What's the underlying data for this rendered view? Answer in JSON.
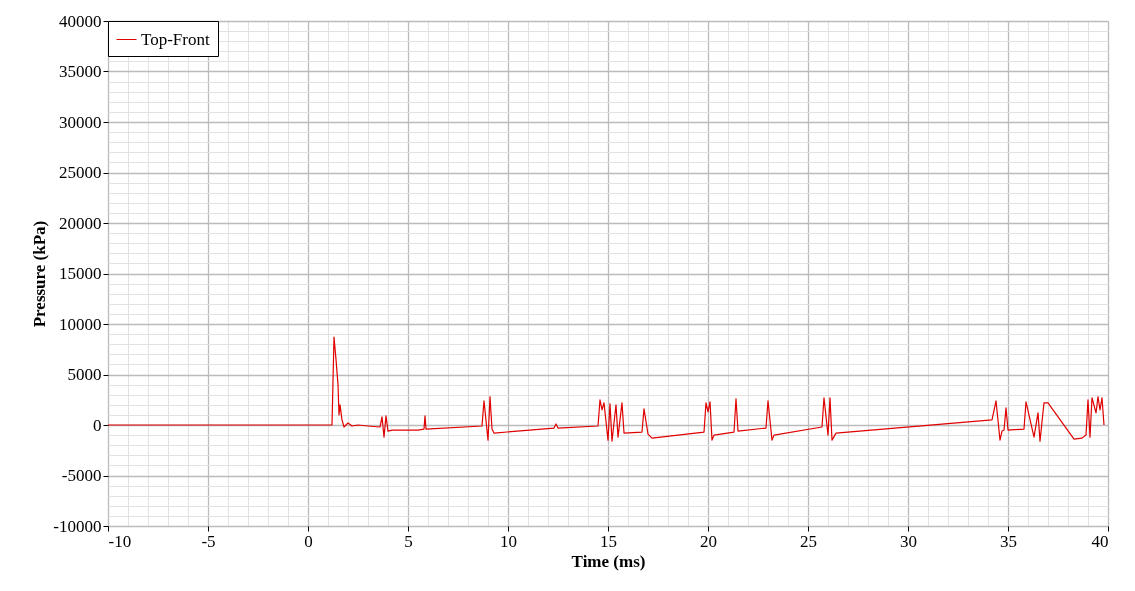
{
  "chart_data": {
    "type": "line",
    "xlabel": "Time (ms)",
    "ylabel": "Pressure (kPa)",
    "xlim": [
      -10,
      40
    ],
    "ylim": [
      -10000,
      40000
    ],
    "xticks": [
      -10,
      {
        "value": -9,
        "label": null
      },
      {
        "value": -8,
        "label": null
      },
      {
        "value": -7,
        "label": null
      },
      {
        "value": -6,
        "label": null
      },
      -5,
      {
        "value": -4,
        "label": null
      },
      {
        "value": -3,
        "label": null
      },
      {
        "value": -2,
        "label": null
      },
      {
        "value": -1,
        "label": null
      },
      0,
      {
        "value": 1,
        "label": null
      },
      {
        "value": 2,
        "label": null
      },
      {
        "value": 3,
        "label": null
      },
      {
        "value": 4,
        "label": null
      },
      5,
      {
        "value": 6,
        "label": null
      },
      {
        "value": 7,
        "label": null
      },
      {
        "value": 8,
        "label": null
      },
      {
        "value": 9,
        "label": null
      },
      10,
      {
        "value": 11,
        "label": null
      },
      {
        "value": 12,
        "label": null
      },
      {
        "value": 13,
        "label": null
      },
      {
        "value": 14,
        "label": null
      },
      15,
      {
        "value": 16,
        "label": null
      },
      {
        "value": 17,
        "label": null
      },
      {
        "value": 18,
        "label": null
      },
      {
        "value": 19,
        "label": null
      },
      20,
      {
        "value": 21,
        "label": null
      },
      {
        "value": 22,
        "label": null
      },
      {
        "value": 23,
        "label": null
      },
      {
        "value": 24,
        "label": null
      },
      25,
      {
        "value": 26,
        "label": null
      },
      {
        "value": 27,
        "label": null
      },
      {
        "value": 28,
        "label": null
      },
      {
        "value": 29,
        "label": null
      },
      30,
      {
        "value": 31,
        "label": null
      },
      {
        "value": 32,
        "label": null
      },
      {
        "value": 33,
        "label": null
      },
      {
        "value": 34,
        "label": null
      },
      35,
      {
        "value": 36,
        "label": null
      },
      {
        "value": 37,
        "label": null
      },
      {
        "value": 38,
        "label": null
      },
      {
        "value": 39,
        "label": null
      },
      40
    ],
    "yticks": [
      -10000,
      {
        "value": -9000,
        "label": null
      },
      {
        "value": -8000,
        "label": null
      },
      {
        "value": -7000,
        "label": null
      },
      {
        "value": -6000,
        "label": null
      },
      -5000,
      {
        "value": -4000,
        "label": null
      },
      {
        "value": -3000,
        "label": null
      },
      {
        "value": -2000,
        "label": null
      },
      {
        "value": -1000,
        "label": null
      },
      0,
      {
        "value": 1000,
        "label": null
      },
      {
        "value": 2000,
        "label": null
      },
      {
        "value": 3000,
        "label": null
      },
      {
        "value": 4000,
        "label": null
      },
      5000,
      {
        "value": 6000,
        "label": null
      },
      {
        "value": 7000,
        "label": null
      },
      {
        "value": 8000,
        "label": null
      },
      {
        "value": 9000,
        "label": null
      },
      10000,
      {
        "value": 11000,
        "label": null
      },
      {
        "value": 12000,
        "label": null
      },
      {
        "value": 13000,
        "label": null
      },
      {
        "value": 14000,
        "label": null
      },
      15000,
      {
        "value": 16000,
        "label": null
      },
      {
        "value": 17000,
        "label": null
      },
      {
        "value": 18000,
        "label": null
      },
      {
        "value": 19000,
        "label": null
      },
      20000,
      {
        "value": 21000,
        "label": null
      },
      {
        "value": 22000,
        "label": null
      },
      {
        "value": 23000,
        "label": null
      },
      {
        "value": 24000,
        "label": null
      },
      25000,
      {
        "value": 26000,
        "label": null
      },
      {
        "value": 27000,
        "label": null
      },
      {
        "value": 28000,
        "label": null
      },
      {
        "value": 29000,
        "label": null
      },
      30000,
      {
        "value": 31000,
        "label": null
      },
      {
        "value": 32000,
        "label": null
      },
      {
        "value": 33000,
        "label": null
      },
      {
        "value": 34000,
        "label": null
      },
      35000,
      {
        "value": 36000,
        "label": null
      },
      {
        "value": 37000,
        "label": null
      },
      {
        "value": 38000,
        "label": null
      },
      {
        "value": 39000,
        "label": null
      },
      40000
    ],
    "grid": true,
    "legend": "top left",
    "line_style": "solid",
    "marker": "none",
    "series": [
      {
        "name": "Top-Front",
        "color": "#e00000",
        "x": [
          -10,
          1.2,
          1.3,
          1.4,
          1.5,
          1.55,
          1.6,
          1.7,
          1.8,
          2.0,
          2.2,
          2.5,
          3.0,
          3.6,
          3.7,
          3.8,
          3.9,
          4.0,
          4.2,
          5.5,
          5.8,
          5.85,
          5.9,
          8.7,
          8.8,
          9.0,
          9.1,
          9.2,
          9.3,
          12.3,
          12.4,
          12.5,
          14.5,
          14.6,
          14.7,
          14.8,
          15.0,
          15.1,
          15.2,
          15.4,
          15.5,
          15.7,
          15.8,
          16.7,
          16.8,
          17.0,
          17.2,
          19.8,
          19.9,
          20.0,
          20.1,
          20.2,
          20.3,
          21.3,
          21.4,
          21.5,
          22.9,
          23.0,
          23.2,
          23.3,
          25.7,
          25.8,
          26.0,
          26.1,
          26.2,
          26.4,
          34.2,
          34.4,
          34.6,
          34.7,
          34.8,
          34.9,
          35.0,
          35.8,
          35.9,
          36.3,
          36.5,
          36.6,
          36.8,
          37.0,
          38.3,
          38.7,
          38.9,
          39.0,
          39.1,
          39.2,
          39.4,
          39.5,
          39.6,
          39.7,
          39.8
        ],
        "values": [
          0,
          0,
          8700,
          6500,
          4000,
          1000,
          2000,
          500,
          -200,
          200,
          -100,
          0,
          -100,
          -200,
          800,
          -1200,
          900,
          -600,
          -500,
          -500,
          -400,
          900,
          -400,
          -100,
          2400,
          -1500,
          2800,
          -400,
          -800,
          -300,
          100,
          -300,
          -100,
          2500,
          1500,
          2200,
          -1500,
          2100,
          -1600,
          2000,
          -1200,
          2200,
          -800,
          -700,
          1600,
          -900,
          -1300,
          -700,
          2200,
          1300,
          2300,
          -1500,
          -1000,
          -700,
          2600,
          -600,
          -300,
          2400,
          -1500,
          -1000,
          -200,
          2700,
          -1000,
          2700,
          -1500,
          -800,
          500,
          2400,
          -1500,
          -600,
          -500,
          1700,
          -500,
          -400,
          2300,
          -1200,
          1200,
          -1600,
          2200,
          2200,
          -1400,
          -1300,
          -1000,
          2500,
          -1200,
          2700,
          1200,
          2800,
          1500,
          2700,
          0
        ]
      }
    ]
  }
}
